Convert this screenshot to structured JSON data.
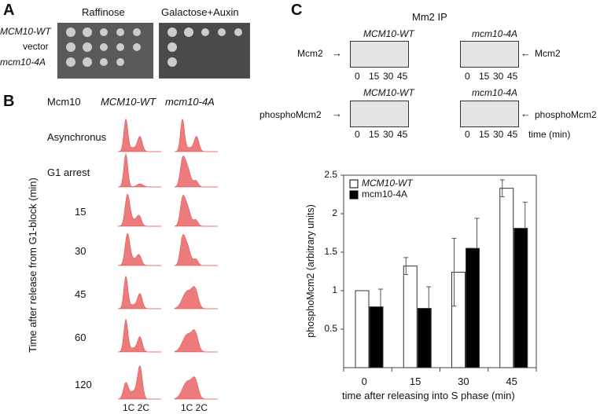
{
  "panelA": {
    "label": "A",
    "conditions": [
      "Raffinose",
      "Galactose+Auxin"
    ],
    "strains": [
      "MCM10-WT",
      "vector",
      "mcm10-4A"
    ]
  },
  "panelB": {
    "label": "B",
    "header": "Mcm10",
    "columns": [
      "MCM10-WT",
      "mcm10-4A"
    ],
    "rows": [
      "Asynchronus",
      "G1 arrest",
      "15",
      "30",
      "45",
      "60",
      "120"
    ],
    "ylabel": "Time after release from G1-block (min)",
    "xticks": [
      "1C 2C",
      "1C 2C"
    ]
  },
  "panelC": {
    "label": "C",
    "title": "Mm2 IP",
    "blot1": {
      "left_label": "Mcm2",
      "right_label": "Mcm2",
      "groups": [
        "MCM10-WT",
        "mcm10-4A"
      ],
      "lanes": [
        "0",
        "15",
        "30",
        "45",
        "0",
        "15",
        "30",
        "45"
      ]
    },
    "blot2": {
      "left_label": "phosphoMcm2",
      "right_label": "phosphoMcm2",
      "groups": [
        "MCM10-WT",
        "mcm10-4A"
      ],
      "lanes": [
        "0",
        "15",
        "30",
        "45",
        "0",
        "15",
        "30",
        "45"
      ],
      "unit": "time (min)"
    }
  },
  "chart_data": {
    "type": "bar",
    "categories": [
      "0",
      "15",
      "30",
      "45"
    ],
    "series": [
      {
        "name": "MCM10-WT",
        "color": "#ffffff",
        "values": [
          1.0,
          1.32,
          1.24,
          2.33
        ],
        "err": [
          0,
          0.11,
          0.44,
          0.11
        ]
      },
      {
        "name": "mcm10-4A",
        "color": "#000000",
        "values": [
          0.79,
          0.77,
          1.55,
          1.81
        ],
        "err": [
          0.23,
          0.28,
          0.39,
          0.34
        ]
      }
    ],
    "yticks": [
      "0.5",
      "1",
      "1.5",
      "2",
      "2.5"
    ],
    "ylim": [
      0,
      2.5
    ],
    "xlabel": "time after releasing into S phase (min)",
    "ylabel": "phosphoMcm2 (arbitrary units)",
    "legend": "top-left"
  }
}
